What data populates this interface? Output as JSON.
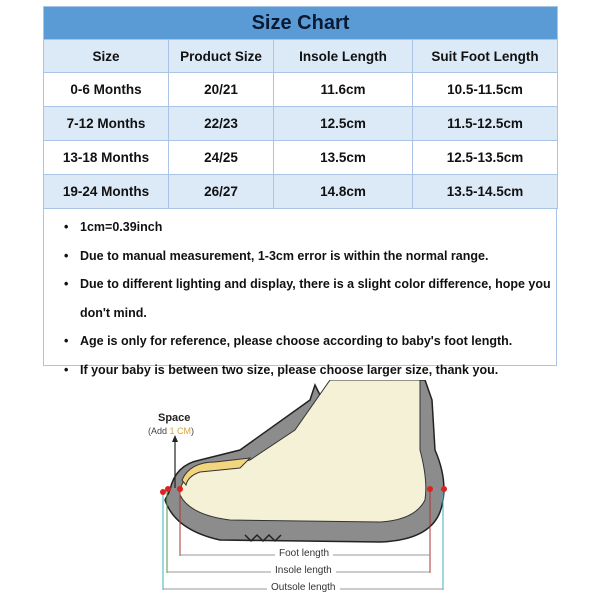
{
  "title": "Size Chart",
  "columns": [
    "Size",
    "Product Size",
    "Insole Length",
    "Suit Foot Length"
  ],
  "rows": [
    [
      "0-6 Months",
      "20/21",
      "11.6cm",
      "10.5-11.5cm"
    ],
    [
      "7-12 Months",
      "22/23",
      "12.5cm",
      "11.5-12.5cm"
    ],
    [
      "13-18 Months",
      "24/25",
      "13.5cm",
      "12.5-13.5cm"
    ],
    [
      "19-24 Months",
      "26/27",
      "14.8cm",
      "13.5-14.5cm"
    ]
  ],
  "notes": [
    "1cm=0.39inch",
    "Due to manual measurement, 1-3cm error is within the normal range.",
    "Due to different lighting and display, there is a slight color difference, hope you",
    "don't mind.",
    "Age is only for reference, please choose according to baby's foot length.",
    "If your baby is between two size, please choose larger size, thank you."
  ],
  "diagram": {
    "space_label": "Space",
    "add_prefix": "(Add ",
    "add_value": "1 CM",
    "add_suffix": ")",
    "foot_length": "Foot length",
    "insole_length": "Insole length",
    "outsole_length": "Outsole length"
  },
  "colors": {
    "header": "#5b9bd5",
    "row_alt": "#dce9f7",
    "accent": "#d9a441"
  }
}
